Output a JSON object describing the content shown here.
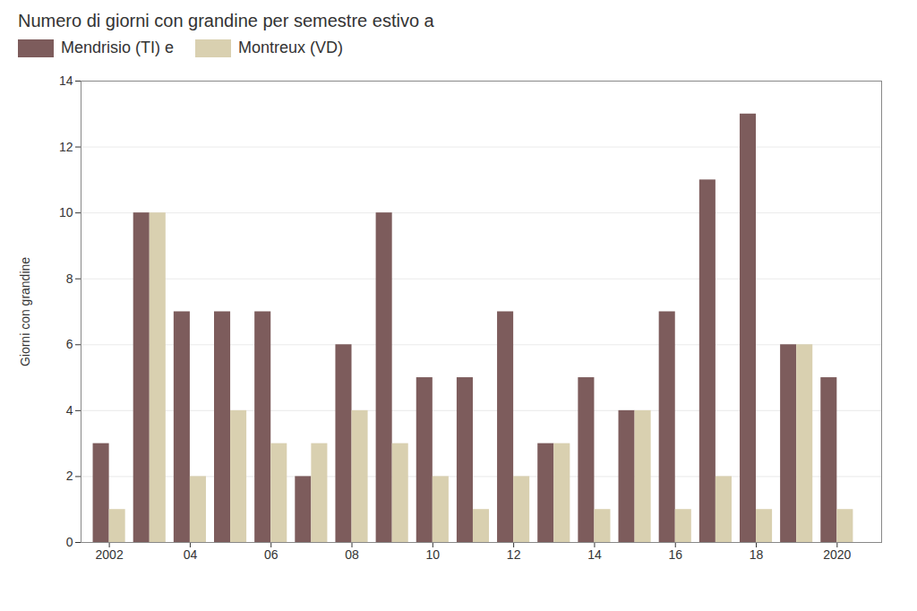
{
  "chart_data": {
    "type": "bar",
    "title": "Numero di giorni con grandine per semestre estivo a",
    "x": [
      2002,
      2003,
      2004,
      2005,
      2006,
      2007,
      2008,
      2009,
      2010,
      2011,
      2012,
      2013,
      2014,
      2015,
      2016,
      2017,
      2018,
      2019,
      2020
    ],
    "series": [
      {
        "name": "Mendrisio (TI) e",
        "color": "#7d5c5c",
        "values": [
          3,
          10,
          7,
          7,
          7,
          2,
          6,
          10,
          5,
          5,
          7,
          3,
          5,
          4,
          7,
          11,
          13,
          6,
          5
        ]
      },
      {
        "name": "Montreux (VD)",
        "color": "#d9d0b0",
        "values": [
          1,
          10,
          2,
          4,
          3,
          3,
          4,
          3,
          2,
          1,
          2,
          3,
          1,
          4,
          1,
          2,
          1,
          6,
          1
        ]
      }
    ],
    "ylabel": "Giorni con grandine",
    "xlim": [
      2001.3,
      2021.1
    ],
    "xticks": [
      2002,
      {
        "value": 2004,
        "label": "04"
      },
      {
        "value": 2006,
        "label": "06"
      },
      {
        "value": 2008,
        "label": "08"
      },
      {
        "value": 2010,
        "label": "10"
      },
      {
        "value": 2012,
        "label": "12"
      },
      {
        "value": 2014,
        "label": "14"
      },
      {
        "value": 2016,
        "label": "16"
      },
      {
        "value": 2018,
        "label": "18"
      },
      2020
    ],
    "ylim": [
      0,
      14
    ],
    "yticks": [
      0,
      2,
      4,
      6,
      8,
      10,
      12,
      14
    ],
    "grid": true,
    "legend": "top"
  }
}
